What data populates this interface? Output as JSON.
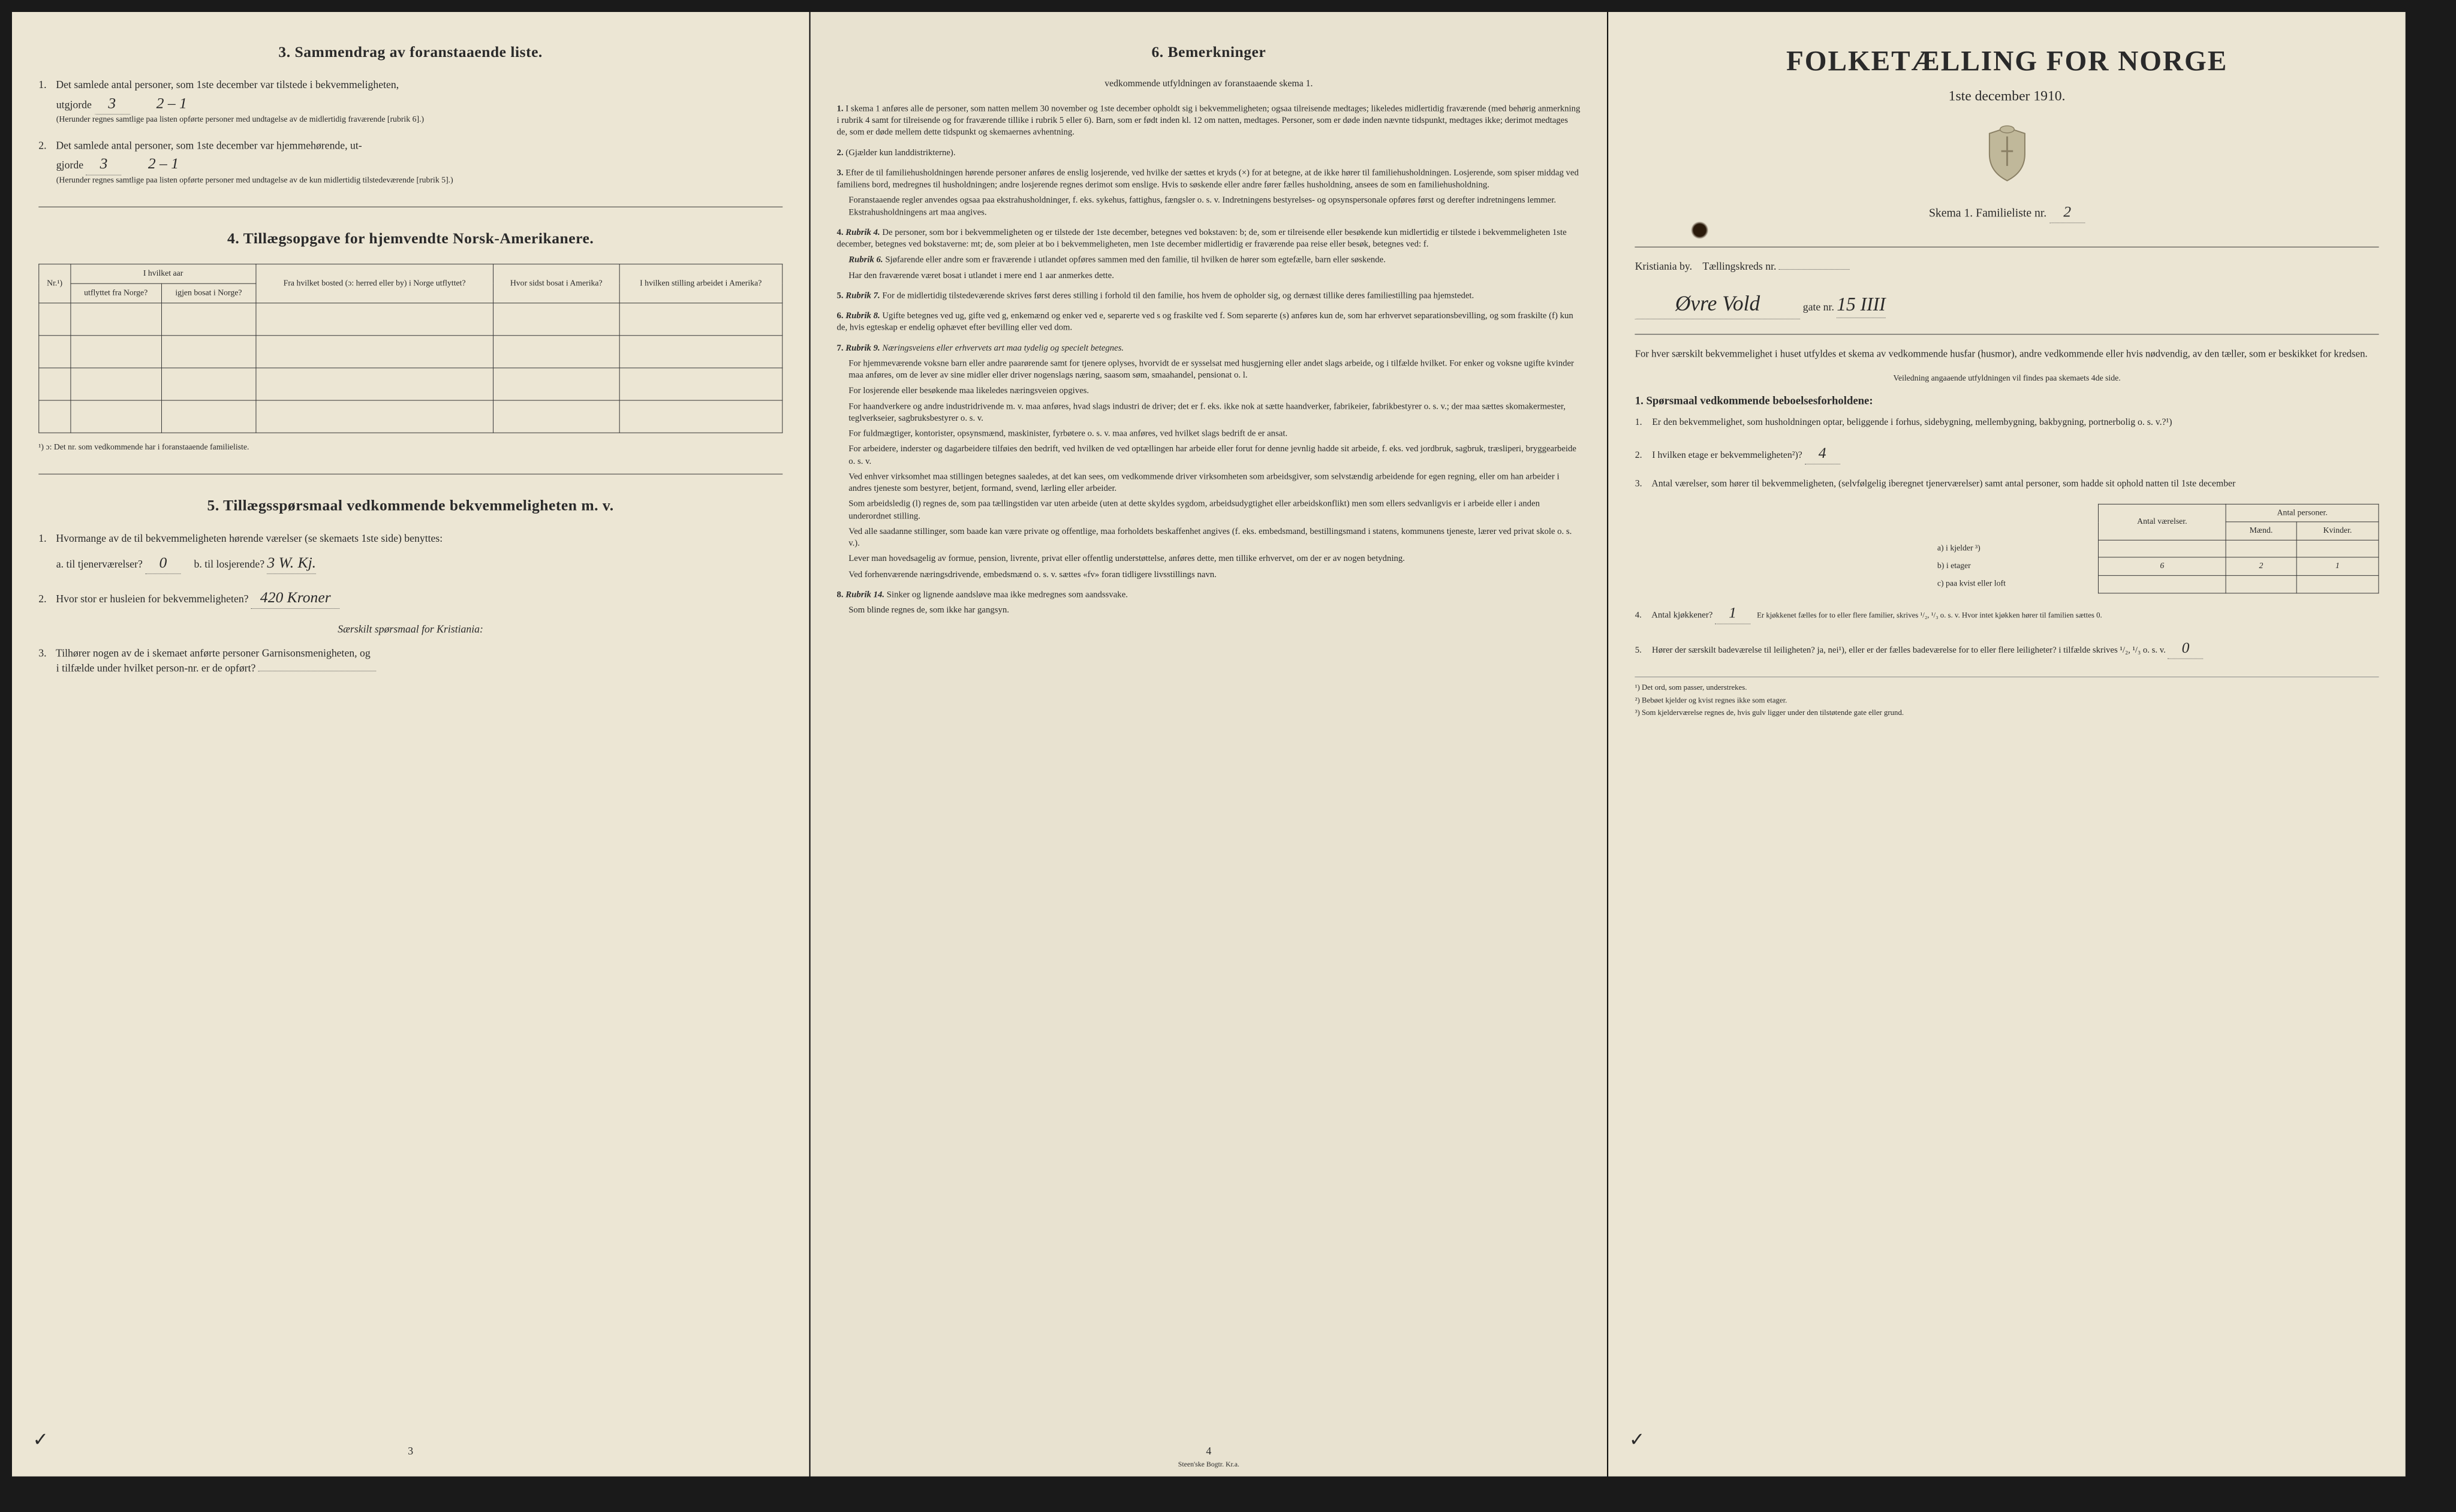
{
  "page1": {
    "section3": {
      "title": "3.   Sammendrag av foranstaaende liste.",
      "item1": {
        "text": "Det samlede antal personer, som 1ste december var tilstede i bekvemmeligheten,",
        "line2_prefix": "utgjorde",
        "value": "3",
        "annotation": "2 – 1",
        "note": "(Herunder regnes samtlige paa listen opførte personer med undtagelse av de midlertidig fraværende [rubrik 6].)"
      },
      "item2": {
        "text": "Det samlede antal personer, som 1ste december var hjemmehørende, ut-",
        "line2_prefix": "gjorde",
        "value": "3",
        "annotation": "2 – 1",
        "note": "(Herunder regnes samtlige paa listen opførte personer med undtagelse av de kun midlertidig tilstedeværende [rubrik 5].)"
      }
    },
    "section4": {
      "title": "4.   Tillægsopgave for hjemvendte Norsk-Amerikanere.",
      "columns": [
        "Nr.¹)",
        "utflyttet fra Norge?",
        "igjen bosat i Norge?",
        "Fra hvilket bosted (ɔ: herred eller by) i Norge utflyttet?",
        "Hvor sidst bosat i Amerika?",
        "I hvilken stilling arbeidet i Amerika?"
      ],
      "col_group": "I hvilket aar",
      "footnote": "¹) ɔ: Det nr. som vedkommende har i foranstaaende familieliste."
    },
    "section5": {
      "title": "5.   Tillægsspørsmaal vedkommende bekvemmeligheten m. v.",
      "item1": {
        "text": "Hvormange av de til bekvemmeligheten hørende værelser (se skemaets 1ste side) benyttes:",
        "a_label": "a.  til tjenerværelser?",
        "a_value": "0",
        "b_label": "b.  til losjerende?",
        "b_value": "3 W. Kj."
      },
      "item2": {
        "text": "Hvor stor er husleien for bekvemmeligheten?",
        "value": "420 Kroner"
      },
      "subtitle": "Særskilt spørsmaal for Kristiania:",
      "item3": {
        "text": "Tilhører nogen av de i skemaet anførte personer Garnisonsmenigheten, og",
        "line2": "i tilfælde under hvilket person-nr. er de opført?"
      }
    },
    "page_num": "3"
  },
  "page2": {
    "title": "6.   Bemerkninger",
    "subtitle": "vedkommende utfyldningen av foranstaaende skema 1.",
    "rubriks": [
      {
        "num": "1.",
        "text": "I skema 1 anføres alle de personer, som natten mellem 30 november og 1ste december opholdt sig i bekvemmeligheten; ogsaa tilreisende medtages; likeledes midlertidig fraværende (med behørig anmerkning i rubrik 4 samt for tilreisende og for fraværende tillike i rubrik 5 eller 6). Barn, som er født inden kl. 12 om natten, medtages. Personer, som er døde inden nævnte tidspunkt, medtages ikke; derimot medtages de, som er døde mellem dette tidspunkt og skemaernes avhentning."
      },
      {
        "num": "2.",
        "text": "(Gjælder kun landdistrikterne)."
      },
      {
        "num": "3.",
        "text": "Efter de til familiehusholdningen hørende personer anføres de enslig losjerende, ved hvilke der sættes et kryds (×) for at betegne, at de ikke hører til familiehusholdningen. Losjerende, som spiser middag ved familiens bord, medregnes til husholdningen; andre losjerende regnes derimot som enslige. Hvis to søskende eller andre fører fælles husholdning, ansees de som en familiehusholdning.",
        "sub": "Foranstaaende regler anvendes ogsaa paa ekstrahusholdninger, f. eks. sykehus, fattighus, fængsler o. s. v. Indretningens bestyrelses- og opsynspersonale opføres først og derefter indretningens lemmer. Ekstrahusholdningens art maa angives."
      },
      {
        "num": "4.",
        "label": "Rubrik 4.",
        "text": "De personer, som bor i bekvemmeligheten og er tilstede der 1ste december, betegnes ved bokstaven: b; de, som er tilreisende eller besøkende kun midlertidig er tilstede i bekvemmeligheten 1ste december, betegnes ved bokstaverne: mt; de, som pleier at bo i bekvemmeligheten, men 1ste december midlertidig er fraværende paa reise eller besøk, betegnes ved: f.",
        "sub1_label": "Rubrik 6.",
        "sub1": "Sjøfarende eller andre som er fraværende i utlandet opføres sammen med den familie, til hvilken de hører som egtefælle, barn eller søskende.",
        "sub2": "Har den fraværende været bosat i utlandet i mere end 1 aar anmerkes dette."
      },
      {
        "num": "5.",
        "label": "Rubrik 7.",
        "text": "For de midlertidig tilstedeværende skrives først deres stilling i forhold til den familie, hos hvem de opholder sig, og dernæst tillike deres familiestilling paa hjemstedet."
      },
      {
        "num": "6.",
        "label": "Rubrik 8.",
        "text": "Ugifte betegnes ved ug, gifte ved g, enkemænd og enker ved e, separerte ved s og fraskilte ved f. Som separerte (s) anføres kun de, som har erhvervet separationsbevilling, og som fraskilte (f) kun de, hvis egteskap er endelig ophævet efter bevilling eller ved dom."
      },
      {
        "num": "7.",
        "label": "Rubrik 9.",
        "intro": "Næringsveiens eller erhvervets art maa tydelig og specielt betegnes.",
        "paras": [
          "For hjemmeværende voksne barn eller andre paarørende samt for tjenere oplyses, hvorvidt de er sysselsat med husgjerning eller andet slags arbeide, og i tilfælde hvilket. For enker og voksne ugifte kvinder maa anføres, om de lever av sine midler eller driver nogenslags næring, saasom søm, smaahandel, pensionat o. l.",
          "For losjerende eller besøkende maa likeledes næringsveien opgives.",
          "For haandverkere og andre industridrivende m. v. maa anføres, hvad slags industri de driver; det er f. eks. ikke nok at sætte haandverker, fabrikeier, fabrikbestyrer o. s. v.; der maa sættes skomakermester, teglverkseier, sagbruksbestyrer o. s. v.",
          "For fuldmægtiger, kontorister, opsynsmænd, maskinister, fyrbøtere o. s. v. maa anføres, ved hvilket slags bedrift de er ansat.",
          "For arbeidere, inderster og dagarbeidere tilføies den bedrift, ved hvilken de ved optællingen har arbeide eller forut for denne jevnlig hadde sit arbeide, f. eks. ved jordbruk, sagbruk, træsliperi, bryggearbeide o. s. v.",
          "Ved enhver virksomhet maa stillingen betegnes saaledes, at det kan sees, om vedkommende driver virksomheten som arbeidsgiver, som selvstændig arbeidende for egen regning, eller om han arbeider i andres tjeneste som bestyrer, betjent, formand, svend, lærling eller arbeider.",
          "Som arbeidsledig (l) regnes de, som paa tællingstiden var uten arbeide (uten at dette skyldes sygdom, arbeidsudygtighet eller arbeidskonflikt) men som ellers sedvanligvis er i arbeide eller i anden underordnet stilling.",
          "Ved alle saadanne stillinger, som baade kan være private og offentlige, maa forholdets beskaffenhet angives (f. eks. embedsmand, bestillingsmand i statens, kommunens tjeneste, lærer ved privat skole o. s. v.).",
          "Lever man hovedsagelig av formue, pension, livrente, privat eller offentlig understøttelse, anføres dette, men tillike erhvervet, om der er av nogen betydning.",
          "Ved forhenværende næringsdrivende, embedsmænd o. s. v. sættes «fv» foran tidligere livsstillings navn."
        ]
      },
      {
        "num": "8.",
        "label": "Rubrik 14.",
        "text": "Sinker og lignende aandsløve maa ikke medregnes som aandssvake.",
        "sub": "Som blinde regnes de, som ikke har gangsyn."
      }
    ],
    "page_num": "4",
    "printer": "Steen'ske Bogtr.  Kr.a."
  },
  "page3": {
    "title": "FOLKETÆLLING FOR NORGE",
    "subtitle": "1ste december 1910.",
    "form_label_prefix": "Skema 1.    Familieliste nr.",
    "form_nr": "2",
    "city": "Kristiania by.",
    "kreds_label": "Tællingskreds nr.",
    "kreds_value": "",
    "street_value": "Øvre Vold",
    "gate_label": "gate nr.",
    "gate_nr": "15 IIII",
    "intro_para": "For hver særskilt bekvemmelighet i huset utfyldes et skema av vedkommende husfar (husmor), andre vedkommende eller hvis nødvendig, av den tæller, som er beskikket for kredsen.",
    "intro_note": "Veiledning angaaende utfyldningen vil findes paa skemaets 4de side.",
    "section1_title": "1.   Spørsmaal vedkommende beboelsesforholdene:",
    "q1": "Er den bekvemmelighet, som husholdningen optar, beliggende i forhus, sidebygning, mellembygning, bakbygning, portnerbolig o. s. v.?¹)",
    "q2_label": "I hvilken etage er bekvemmeligheten²)?",
    "q2_value": "4",
    "q3": "Antal værelser, som hører til bekvemmeligheten, (selvfølgelig iberegnet tjenerværelser) samt antal personer, som hadde sit ophold natten til 1ste december",
    "table": {
      "col1": "Antal værelser.",
      "col2": "Antal personer.",
      "col2a": "Mænd.",
      "col2b": "Kvinder.",
      "row_a": "a) i kjelder ³)",
      "row_b": "b) i etager",
      "row_c": "c) paa kvist eller loft",
      "b_vals": [
        "6",
        "2",
        "1"
      ]
    },
    "q4_label": "Antal kjøkkener?",
    "q4_value": "1",
    "q4_note": "Er kjøkkenet fælles for to eller flere familier, skrives ¹/₂, ¹/₃ o. s. v.  Hvor intet kjøkken hører til familien sættes 0.",
    "q5_label": "Hører der særskilt badeværelse til leiligheten?  ja,  nei¹),  eller er der fælles badeværelse for to eller flere leiligheter?  i tilfælde skrives ¹/₂, ¹/₃ o. s. v.",
    "q5_value": "0",
    "notes": [
      "¹)  Det ord, som passer, understrekes.",
      "²)  Bebøet kjelder og kvist regnes ikke som etager.",
      "³)  Som kjelderværelse regnes de, hvis gulv ligger under den tilstøtende gate eller grund."
    ]
  },
  "colors": {
    "paper": "#e8e2d0",
    "ink": "#2a2a2a",
    "handwriting": "#3a3020"
  }
}
